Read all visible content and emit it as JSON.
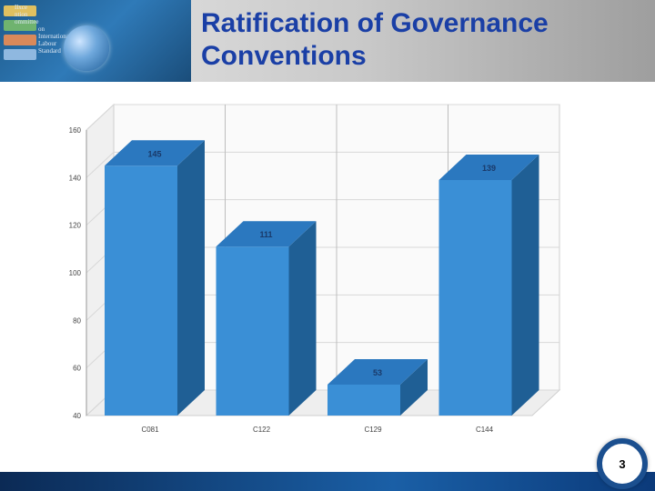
{
  "slide": {
    "title_line1": "Ratification of Governance",
    "title_line2": "Conventions",
    "page_number": "3",
    "logo_lines": [
      "Ilxce",
      "ntion",
      "ommittee",
      "on",
      "International",
      "Labour",
      "Standard"
    ]
  },
  "chart_data": {
    "type": "bar",
    "categories": [
      "C081",
      "C122",
      "C129",
      "C144"
    ],
    "values": [
      145,
      111,
      53,
      139
    ],
    "data_labels": [
      "145",
      "111",
      "53",
      "139"
    ],
    "ylim": [
      40,
      160
    ],
    "y_ticks": [
      40,
      60,
      80,
      100,
      120,
      140,
      160
    ],
    "grid": true,
    "three_d": true,
    "colors": {
      "bar_front": "#3a8fd6",
      "bar_side": "#1f5f95",
      "bar_top": "#2b78bf",
      "label": "#1a3a6a"
    }
  }
}
